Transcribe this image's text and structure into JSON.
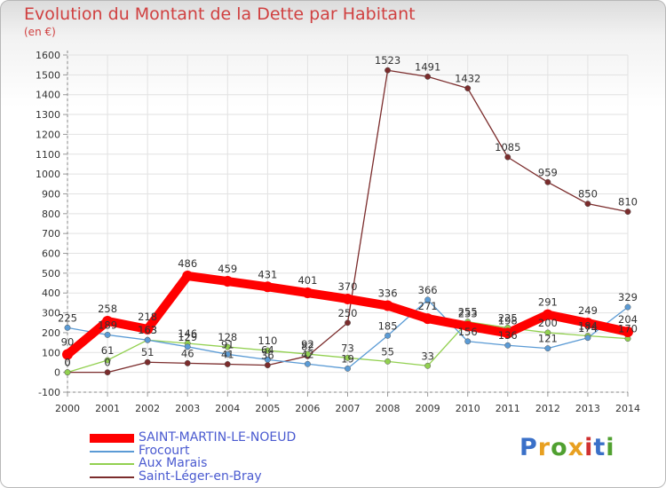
{
  "title": "Evolution du Montant de la Dette par Habitant",
  "unit": "(en €)",
  "brand": "Proxiti",
  "brand_colors": [
    "#3a70c8",
    "#e8a020",
    "#50a030",
    "#e8a020",
    "#d03030",
    "#3a70c8",
    "#50a030"
  ],
  "chart_data": {
    "type": "line",
    "x": [
      2000,
      2001,
      2002,
      2003,
      2004,
      2005,
      2006,
      2007,
      2008,
      2009,
      2010,
      2011,
      2012,
      2013,
      2014
    ],
    "ylim": [
      -100,
      1600
    ],
    "y_ticks": [
      -100,
      0,
      100,
      200,
      300,
      400,
      500,
      600,
      700,
      800,
      900,
      1000,
      1100,
      1200,
      1300,
      1400,
      1500,
      1600
    ],
    "grid": true,
    "legend_position": "bottom-left",
    "series": [
      {
        "name": "SAINT-MARTIN-LE-NOEUD",
        "color": "#ff0000",
        "values": [
          90,
          258,
          218,
          486,
          459,
          431,
          401,
          370,
          336,
          271,
          233,
          198,
          291,
          249,
          204
        ]
      },
      {
        "name": "Frocourt",
        "color": "#5b9bd5",
        "values": [
          225,
          189,
          163,
          129,
          91,
          64,
          42,
          19,
          185,
          366,
          156,
          136,
          121,
          174,
          329
        ]
      },
      {
        "name": "Aux Marais",
        "color": "#92d050",
        "values": [
          0,
          61,
          163,
          146,
          128,
          110,
          92,
          73,
          55,
          33,
          255,
          225,
          200,
          184,
          170
        ]
      },
      {
        "name": "Saint-Léger-en-Bray",
        "color": "#7b2c2c",
        "values": [
          0,
          0,
          51,
          46,
          41,
          36,
          82,
          250,
          1523,
          1491,
          1432,
          1085,
          959,
          850,
          810
        ]
      }
    ]
  }
}
